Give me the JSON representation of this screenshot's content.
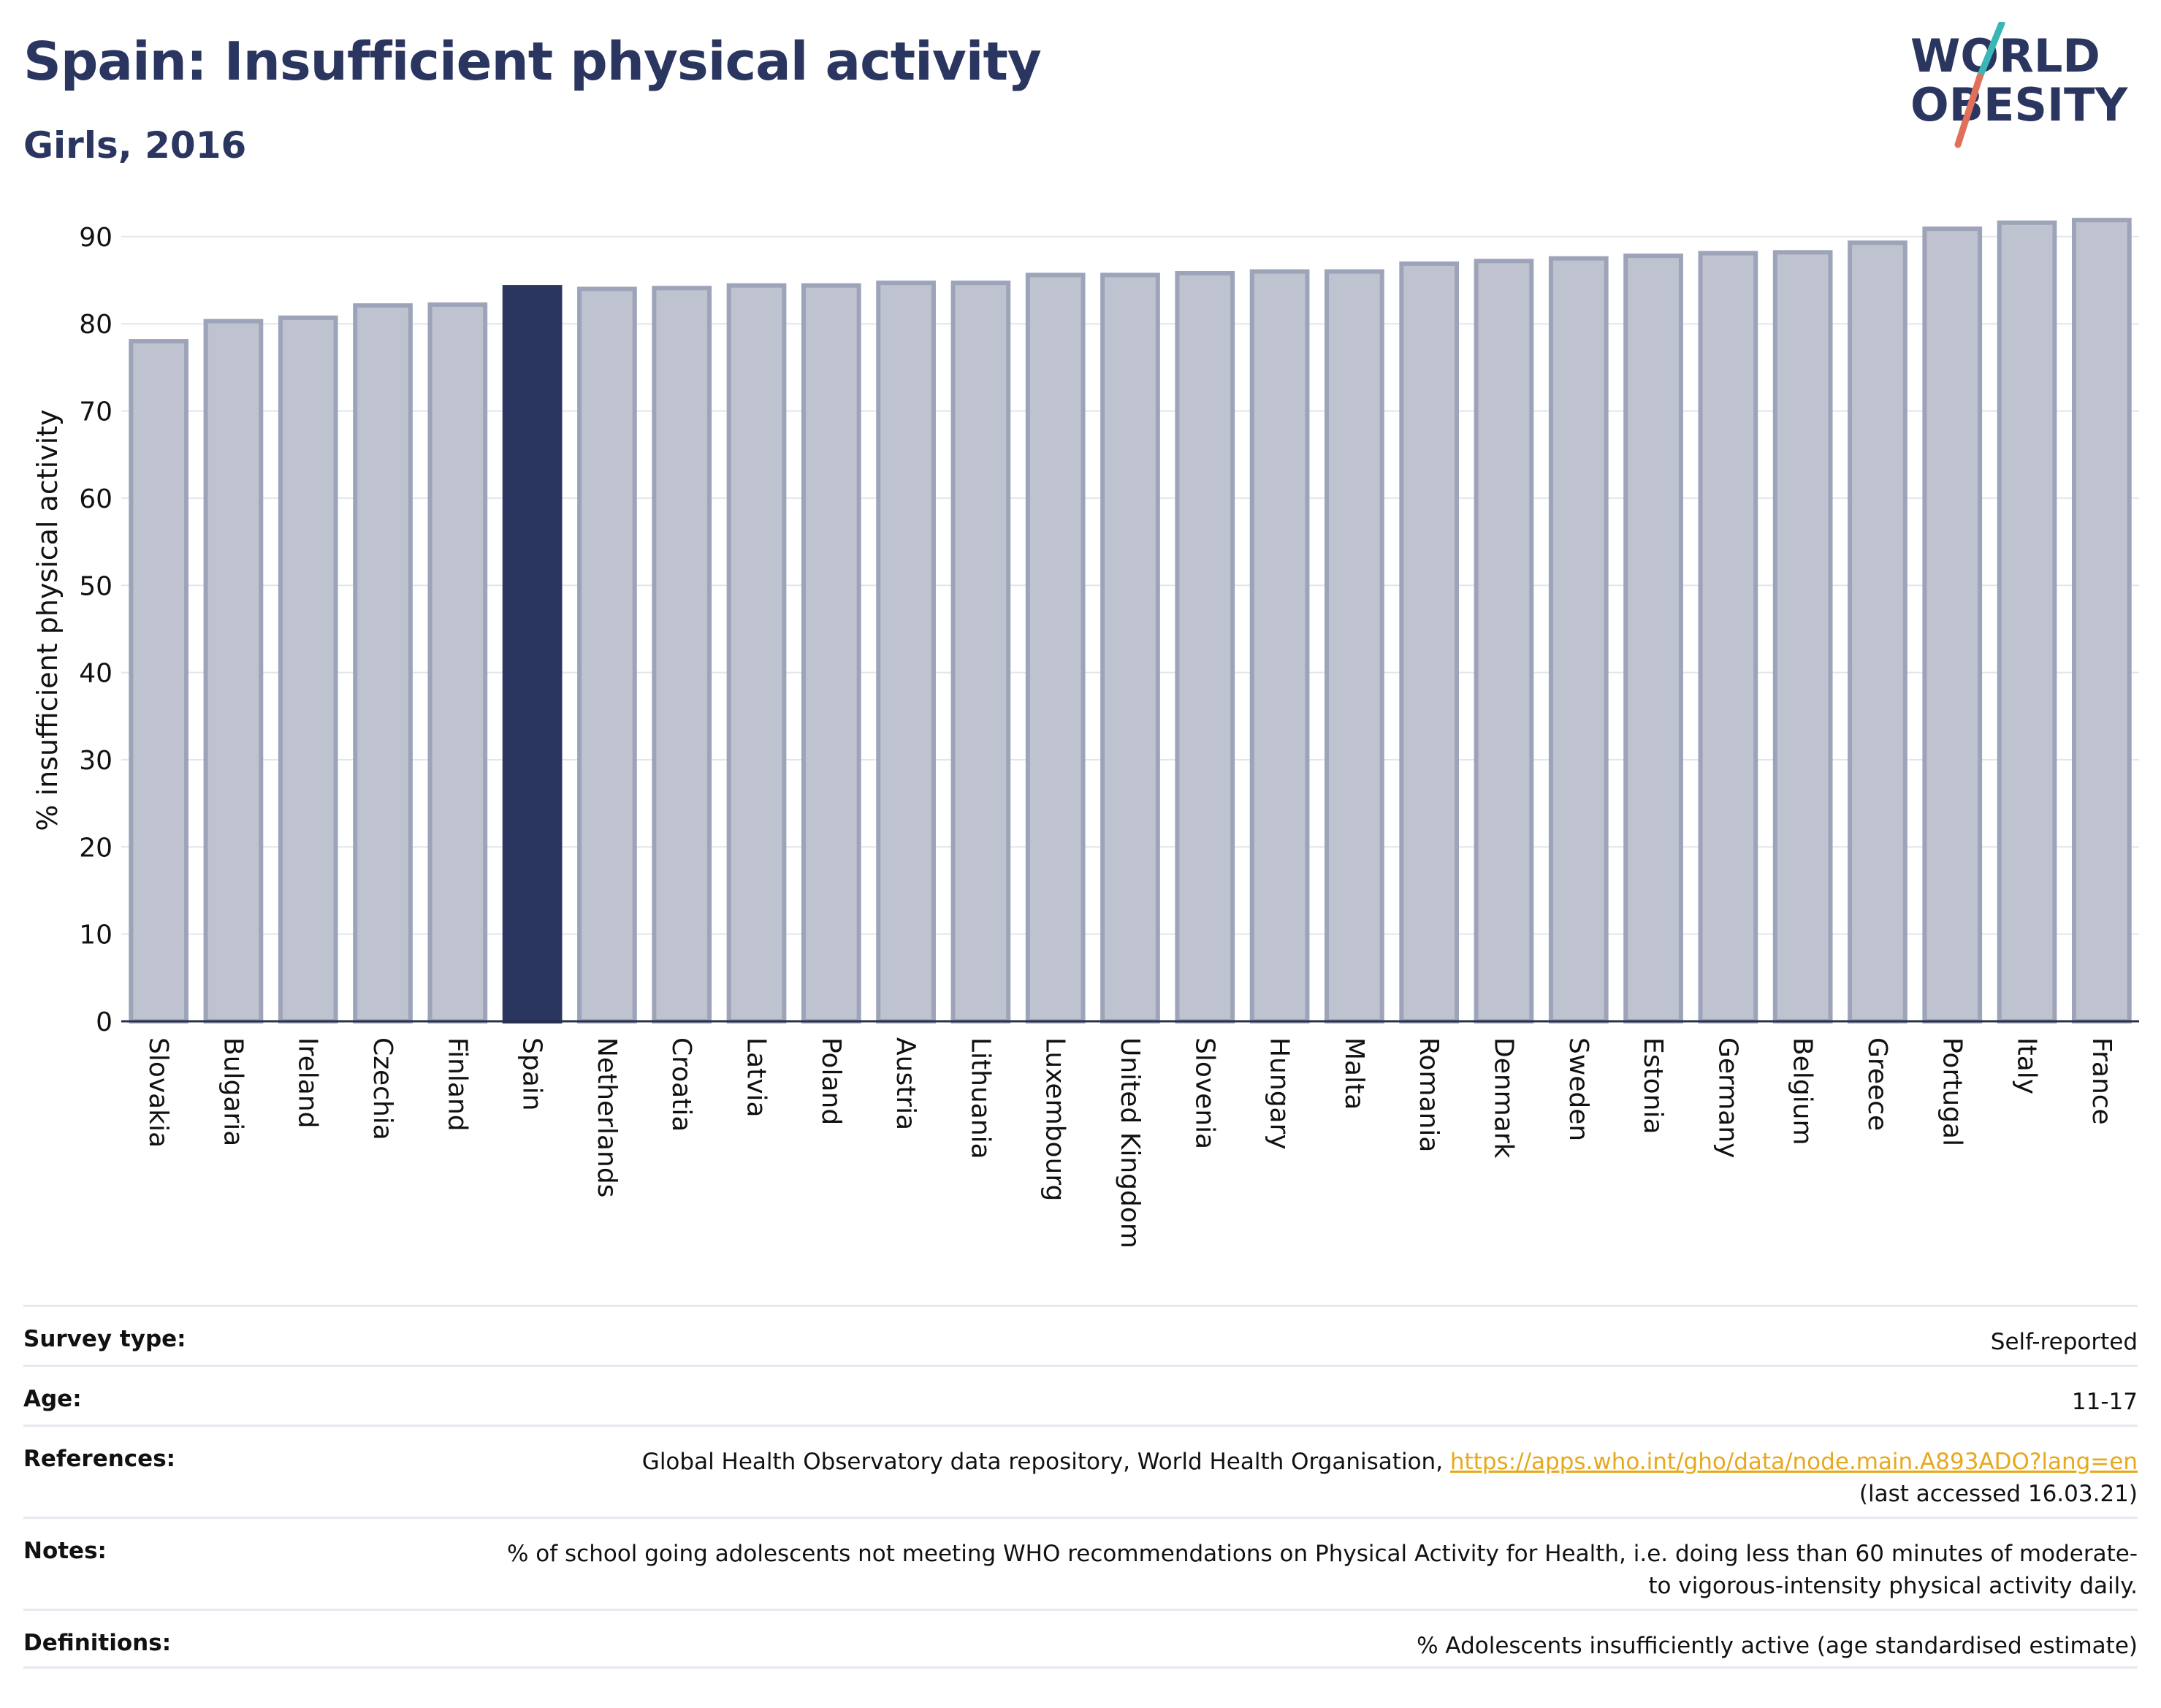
{
  "header": {
    "title": "Spain: Insufficient physical activity",
    "subtitle": "Girls, 2016"
  },
  "logo": {
    "line1": "WORLD",
    "line2": "OBESITY",
    "colors": {
      "text": "#2a3560",
      "slash_top": "#3ab7b5",
      "slash_bottom": "#e0705a"
    }
  },
  "chart_data": {
    "type": "bar",
    "title": "Spain: Insufficient physical activity",
    "subtitle": "Girls, 2016",
    "ylabel": "% insufficient physical activity",
    "xlabel": "",
    "ylim": [
      0,
      92
    ],
    "yticks": [
      0,
      10,
      20,
      30,
      40,
      50,
      60,
      70,
      80,
      90
    ],
    "grid": true,
    "highlight": "Spain",
    "colors": {
      "default": "#bfc2cf",
      "default_stroke": "#9da3b9",
      "highlight": "#2a3560"
    },
    "categories": [
      "Slovakia",
      "Bulgaria",
      "Ireland",
      "Czechia",
      "Finland",
      "Spain",
      "Netherlands",
      "Croatia",
      "Latvia",
      "Poland",
      "Austria",
      "Lithuania",
      "Luxembourg",
      "United Kingdom",
      "Slovenia",
      "Hungary",
      "Malta",
      "Romania",
      "Denmark",
      "Sweden",
      "Estonia",
      "Germany",
      "Belgium",
      "Greece",
      "Portugal",
      "Italy",
      "France"
    ],
    "values": [
      78.0,
      80.3,
      80.7,
      82.1,
      82.2,
      84.2,
      84.0,
      84.1,
      84.4,
      84.4,
      84.7,
      84.7,
      85.6,
      85.6,
      85.8,
      86.0,
      86.0,
      86.9,
      87.2,
      87.5,
      87.8,
      88.1,
      88.2,
      89.3,
      90.9,
      91.6,
      91.9
    ]
  },
  "meta": {
    "survey_type": {
      "label": "Survey type:",
      "value": "Self-reported"
    },
    "age": {
      "label": "Age:",
      "value": "11-17"
    },
    "references": {
      "label": "References:",
      "text": "Global Health Observatory data repository, World Health Organisation, ",
      "link": "https://apps.who.int/gho/data/node.main.A893ADO?lang=en",
      "accessed": "(last accessed 16.03.21)"
    },
    "notes": {
      "label": "Notes:",
      "value": "% of school going adolescents not meeting WHO recommendations on Physical Activity for Health, i.e. doing less than 60 minutes of moderate- to vigorous-intensity physical activity daily."
    },
    "definitions": {
      "label": "Definitions:",
      "value": "% Adolescents insufficiently active (age standardised estimate)"
    }
  }
}
